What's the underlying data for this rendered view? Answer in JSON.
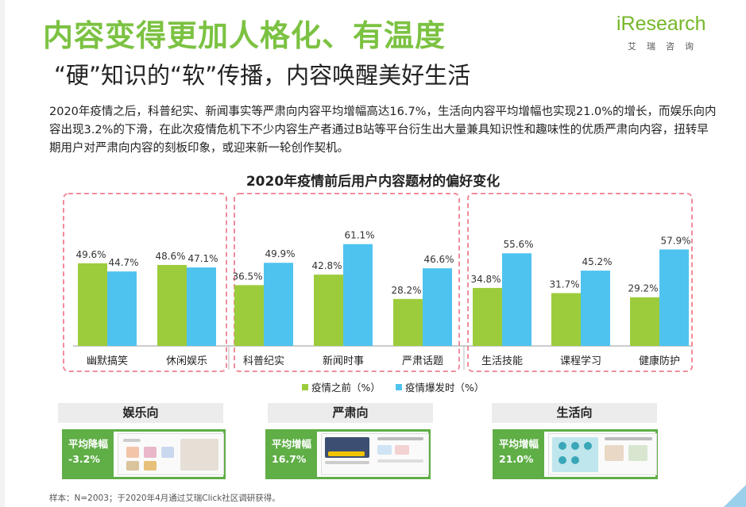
{
  "header": {
    "title": "内容变得更加人格化、有温度",
    "subtitle": "“硬”知识的“软”传播，内容唤醒美好生活",
    "logo_brand": "iResearch",
    "logo_cn": "艾瑞咨询"
  },
  "description": "2020年疫情之后，科普纪实、新闻事实等严肃向内容平均增幅高达16.7%，生活向内容平均增幅也实现21.0%的增长，而娱乐向内容出现3.2%的下滑，在此次疫情危机下不少内容生产者通过B站等平台衍生出大量兼具知识性和趣味性的优质严肃向内容，扭转早期用户对严肃向内容的刻板印象，或迎来新一轮创作契机。",
  "chart_data": {
    "type": "bar",
    "title": "2020年疫情前后用户内容题材的偏好变化",
    "categories": [
      "幽默搞笑",
      "休闲娱乐",
      "科普纪实",
      "新闻时事",
      "严肃话题",
      "生活技能",
      "课程学习",
      "健康防护"
    ],
    "groups": [
      {
        "name": "娱乐向",
        "categories": [
          "幽默搞笑",
          "休闲娱乐"
        ]
      },
      {
        "name": "严肃向",
        "categories": [
          "科普纪实",
          "新闻时事",
          "严肃话题"
        ]
      },
      {
        "name": "生活向",
        "categories": [
          "生活技能",
          "课程学习",
          "健康防护"
        ]
      }
    ],
    "series": [
      {
        "name": "疫情之前（%）",
        "color": "#9ccc3c",
        "values": [
          49.6,
          48.6,
          36.5,
          42.8,
          28.2,
          34.8,
          31.7,
          29.2
        ],
        "labels": [
          "49.6%",
          "48.6%",
          "36.5%",
          "42.8%",
          "28.2%",
          "34.8%",
          "31.7%",
          "29.2%"
        ]
      },
      {
        "name": "疫情爆发时（%）",
        "color": "#4fc3ef",
        "values": [
          44.7,
          47.1,
          49.9,
          61.1,
          46.6,
          55.6,
          45.2,
          57.9
        ],
        "labels": [
          "44.7%",
          "47.1%",
          "49.9%",
          "61.1%",
          "46.6%",
          "55.6%",
          "45.2%",
          "57.9%"
        ]
      }
    ],
    "ylim": [
      0,
      70
    ],
    "legend": "bottom-center",
    "grid": false
  },
  "panels": [
    {
      "header": "娱乐向",
      "tag_line1": "平均降幅",
      "tag_line2": "-3.2%"
    },
    {
      "header": "严肃向",
      "tag_line1": "平均增幅",
      "tag_line2": "16.7%"
    },
    {
      "header": "生活向",
      "tag_line1": "平均增幅",
      "tag_line2": "21.0%"
    }
  ],
  "footnote": "样本：N=2003；于2020年4月通过艾瑞Click社区调研获得。"
}
